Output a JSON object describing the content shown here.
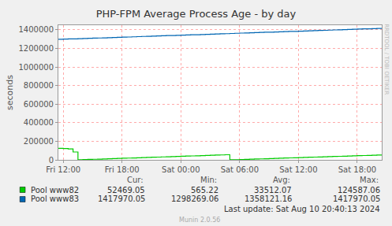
{
  "chart_data": {
    "type": "line",
    "title": "PHP-FPM Average Process Age - by day",
    "y_label": "seconds",
    "categories": [
      null,
      "Fri 12:00",
      null,
      null,
      null,
      null,
      null,
      null,
      null,
      null,
      null,
      null,
      null,
      "Fri 18:00",
      null,
      null,
      null,
      null,
      null,
      null,
      null,
      null,
      null,
      null,
      null,
      "Sat 00:00",
      null,
      null,
      null,
      null,
      null,
      null,
      null,
      null,
      null,
      null,
      null,
      "Sat 06:00",
      null,
      null,
      null,
      null,
      null,
      null,
      null,
      null,
      null,
      null,
      null,
      "Sat 12:00",
      null,
      null,
      null,
      null,
      null,
      null,
      null,
      null,
      null,
      null,
      null,
      "Sat 18:00",
      null,
      null,
      null,
      null,
      null
    ],
    "series": [
      {
        "name": "Pool www82",
        "color": "#00cc00",
        "values": [
          124587,
          122000,
          118000,
          85000,
          1000,
          2800,
          4600,
          6400,
          8200,
          10000,
          11800,
          13600,
          15400,
          17200,
          19000,
          20800,
          22600,
          24400,
          26200,
          28000,
          29800,
          31600,
          33400,
          35200,
          37000,
          38800,
          40600,
          42400,
          44200,
          46000,
          47800,
          49600,
          51400,
          53200,
          55000,
          565,
          2300,
          4000,
          5700,
          7400,
          9100,
          10800,
          12500,
          14200,
          15900,
          17600,
          19300,
          21000,
          22700,
          24400,
          26100,
          27800,
          29500,
          31200,
          32900,
          34600,
          36300,
          38000,
          39700,
          41400,
          43100,
          44800,
          46500,
          48200,
          49900,
          51200,
          52469
        ],
        "stats": [
          52469.05,
          565.22,
          33512.07,
          124587.06
        ]
      },
      {
        "name": "Pool www83",
        "color": "#0066b3",
        "values": [
          1298269,
          1300000,
          1302000,
          1303000,
          1305000,
          1307000,
          1309000,
          1311000,
          1312000,
          1314000,
          1316000,
          1318000,
          1320000,
          1321000,
          1323000,
          1325000,
          1327000,
          1329000,
          1330000,
          1332000,
          1334000,
          1336000,
          1338000,
          1339000,
          1341000,
          1343000,
          1345000,
          1347000,
          1348000,
          1350000,
          1352000,
          1354000,
          1356000,
          1357000,
          1359000,
          1361000,
          1363000,
          1365000,
          1366000,
          1368000,
          1370000,
          1372000,
          1374000,
          1375000,
          1377000,
          1379000,
          1381000,
          1383000,
          1384000,
          1386000,
          1388000,
          1390000,
          1392000,
          1393000,
          1395000,
          1397000,
          1399000,
          1401000,
          1402000,
          1404000,
          1406000,
          1408000,
          1410000,
          1411000,
          1413000,
          1415000,
          1417970
        ],
        "stats": [
          1417970.05,
          1298269.06,
          1358121.16,
          1417970.05
        ]
      }
    ],
    "stats_labels": [
      "Cur:",
      "Min:",
      "Avg:",
      "Max:"
    ],
    "ylim": [
      0,
      1450000
    ],
    "yticks": [
      0,
      200000,
      400000,
      600000,
      800000,
      1000000,
      1200000,
      1400000
    ],
    "grid": true,
    "line_style": "step",
    "footer": "Last update: Sat Aug 10 20:40:13 2024",
    "credit": "Munin 2.0.56",
    "side_text": "RRDTOOL / TOBI OETIKER"
  }
}
